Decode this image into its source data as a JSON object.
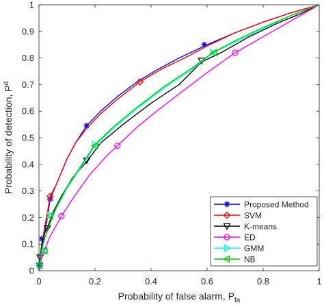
{
  "chart_data": {
    "type": "line",
    "title": "",
    "xlabel": "Probability of false alarm, P",
    "xlabel_sub": "fa",
    "ylabel": "Probability of detection, P",
    "ylabel_sub": "d",
    "xlim": [
      0,
      1
    ],
    "ylim": [
      0,
      1
    ],
    "x_ticks": [
      "0",
      "0.2",
      "0.4",
      "0.6",
      "0.8",
      "1"
    ],
    "y_ticks": [
      "0",
      "0.1",
      "0.2",
      "0.3",
      "0.4",
      "0.5",
      "0.6",
      "0.7",
      "0.8",
      "0.9",
      "1"
    ],
    "grid": false,
    "legend_position": "bottom-right",
    "series": [
      {
        "name": "Proposed Method",
        "color": "#0000ff",
        "marker": "star",
        "points": [
          [
            0,
            0
          ],
          [
            0.002,
            0.02
          ],
          [
            0.005,
            0.05
          ],
          [
            0.01,
            0.09
          ],
          [
            0.02,
            0.14
          ],
          [
            0.03,
            0.2
          ],
          [
            0.04,
            0.27
          ],
          [
            0.06,
            0.32
          ],
          [
            0.08,
            0.37
          ],
          [
            0.1,
            0.42
          ],
          [
            0.13,
            0.48
          ],
          [
            0.17,
            0.545
          ],
          [
            0.22,
            0.6
          ],
          [
            0.28,
            0.655
          ],
          [
            0.35,
            0.71
          ],
          [
            0.42,
            0.755
          ],
          [
            0.5,
            0.8
          ],
          [
            0.6,
            0.85
          ],
          [
            0.7,
            0.895
          ],
          [
            0.8,
            0.935
          ],
          [
            0.9,
            0.97
          ],
          [
            1,
            1
          ]
        ],
        "markers": [
          [
            0.002,
            0.02
          ],
          [
            0.01,
            0.12
          ],
          [
            0.04,
            0.27
          ],
          [
            0.17,
            0.545
          ],
          [
            0.59,
            0.85
          ]
        ]
      },
      {
        "name": "SVM",
        "color": "#ff0000",
        "marker": "diamond",
        "points": [
          [
            0,
            0
          ],
          [
            0.002,
            0.02
          ],
          [
            0.005,
            0.05
          ],
          [
            0.01,
            0.1
          ],
          [
            0.02,
            0.16
          ],
          [
            0.04,
            0.28
          ],
          [
            0.06,
            0.32
          ],
          [
            0.08,
            0.37
          ],
          [
            0.1,
            0.42
          ],
          [
            0.13,
            0.48
          ],
          [
            0.17,
            0.535
          ],
          [
            0.22,
            0.59
          ],
          [
            0.28,
            0.645
          ],
          [
            0.36,
            0.71
          ],
          [
            0.44,
            0.76
          ],
          [
            0.52,
            0.8
          ],
          [
            0.6,
            0.845
          ],
          [
            0.7,
            0.895
          ],
          [
            0.8,
            0.935
          ],
          [
            0.9,
            0.97
          ],
          [
            1,
            1
          ]
        ],
        "markers": [
          [
            0.002,
            0.02
          ],
          [
            0.04,
            0.28
          ],
          [
            0.36,
            0.71
          ]
        ]
      },
      {
        "name": "K-means",
        "color": "#000000",
        "marker": "triangle-down",
        "points": [
          [
            0,
            0
          ],
          [
            0.002,
            0.02
          ],
          [
            0.004,
            0.05
          ],
          [
            0.01,
            0.1
          ],
          [
            0.02,
            0.14
          ],
          [
            0.03,
            0.16
          ],
          [
            0.05,
            0.22
          ],
          [
            0.08,
            0.28
          ],
          [
            0.12,
            0.35
          ],
          [
            0.17,
            0.41
          ],
          [
            0.22,
            0.48
          ],
          [
            0.3,
            0.55
          ],
          [
            0.4,
            0.63
          ],
          [
            0.5,
            0.7
          ],
          [
            0.58,
            0.785
          ],
          [
            0.65,
            0.82
          ],
          [
            0.75,
            0.88
          ],
          [
            0.85,
            0.93
          ],
          [
            0.93,
            0.965
          ],
          [
            1,
            1
          ]
        ],
        "markers": [
          [
            0.002,
            0.02
          ],
          [
            0.004,
            0.05
          ],
          [
            0.03,
            0.16
          ],
          [
            0.17,
            0.415
          ],
          [
            0.58,
            0.79
          ]
        ]
      },
      {
        "name": "ED",
        "color": "#ff00ff",
        "marker": "circle",
        "points": [
          [
            0,
            0
          ],
          [
            0.003,
            0.02
          ],
          [
            0.01,
            0.05
          ],
          [
            0.02,
            0.08
          ],
          [
            0.04,
            0.13
          ],
          [
            0.08,
            0.205
          ],
          [
            0.12,
            0.27
          ],
          [
            0.18,
            0.36
          ],
          [
            0.24,
            0.43
          ],
          [
            0.28,
            0.47
          ],
          [
            0.35,
            0.54
          ],
          [
            0.42,
            0.6
          ],
          [
            0.5,
            0.665
          ],
          [
            0.6,
            0.745
          ],
          [
            0.7,
            0.82
          ],
          [
            0.8,
            0.88
          ],
          [
            0.9,
            0.94
          ],
          [
            1,
            1
          ]
        ],
        "markers": [
          [
            0.003,
            0.02
          ],
          [
            0.02,
            0.075
          ],
          [
            0.08,
            0.205
          ],
          [
            0.28,
            0.47
          ],
          [
            0.7,
            0.82
          ]
        ]
      },
      {
        "name": "GMM",
        "color": "#00ffff",
        "marker": "triangle-right",
        "points": [
          [
            0,
            0
          ],
          [
            0.002,
            0.02
          ],
          [
            0.006,
            0.05
          ],
          [
            0.01,
            0.08
          ],
          [
            0.02,
            0.12
          ],
          [
            0.04,
            0.18
          ],
          [
            0.06,
            0.23
          ],
          [
            0.1,
            0.31
          ],
          [
            0.15,
            0.39
          ],
          [
            0.2,
            0.47
          ],
          [
            0.27,
            0.54
          ],
          [
            0.35,
            0.61
          ],
          [
            0.45,
            0.69
          ],
          [
            0.55,
            0.76
          ],
          [
            0.62,
            0.82
          ],
          [
            0.7,
            0.86
          ],
          [
            0.8,
            0.91
          ],
          [
            0.9,
            0.96
          ],
          [
            1,
            1
          ]
        ],
        "markers": [
          [
            0.002,
            0.02
          ],
          [
            0.02,
            0.075
          ],
          [
            0.04,
            0.21
          ],
          [
            0.2,
            0.475
          ],
          [
            0.62,
            0.82
          ]
        ]
      },
      {
        "name": "NB",
        "color": "#00cc00",
        "marker": "triangle-left",
        "points": [
          [
            0,
            0
          ],
          [
            0.002,
            0.02
          ],
          [
            0.006,
            0.05
          ],
          [
            0.01,
            0.08
          ],
          [
            0.02,
            0.12
          ],
          [
            0.04,
            0.18
          ],
          [
            0.06,
            0.235
          ],
          [
            0.1,
            0.315
          ],
          [
            0.15,
            0.395
          ],
          [
            0.2,
            0.475
          ],
          [
            0.27,
            0.545
          ],
          [
            0.35,
            0.615
          ],
          [
            0.45,
            0.695
          ],
          [
            0.55,
            0.765
          ],
          [
            0.62,
            0.82
          ],
          [
            0.7,
            0.865
          ],
          [
            0.8,
            0.915
          ],
          [
            0.9,
            0.96
          ],
          [
            1,
            1
          ]
        ],
        "markers": [
          [
            0.002,
            0.02
          ],
          [
            0.02,
            0.075
          ],
          [
            0.04,
            0.205
          ],
          [
            0.2,
            0.47
          ],
          [
            0.625,
            0.82
          ]
        ]
      }
    ]
  }
}
